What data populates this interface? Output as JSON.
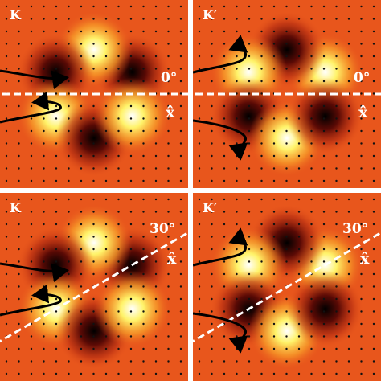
{
  "panels": [
    {
      "valley": "K",
      "angle": "0°",
      "axis": "x̂"
    },
    {
      "valley": "K′",
      "angle": "0°",
      "axis": "x̂"
    },
    {
      "valley": "K",
      "angle": "30°",
      "axis": "x̂"
    },
    {
      "valley": "K′",
      "angle": "30°",
      "axis": "x̂"
    }
  ]
}
